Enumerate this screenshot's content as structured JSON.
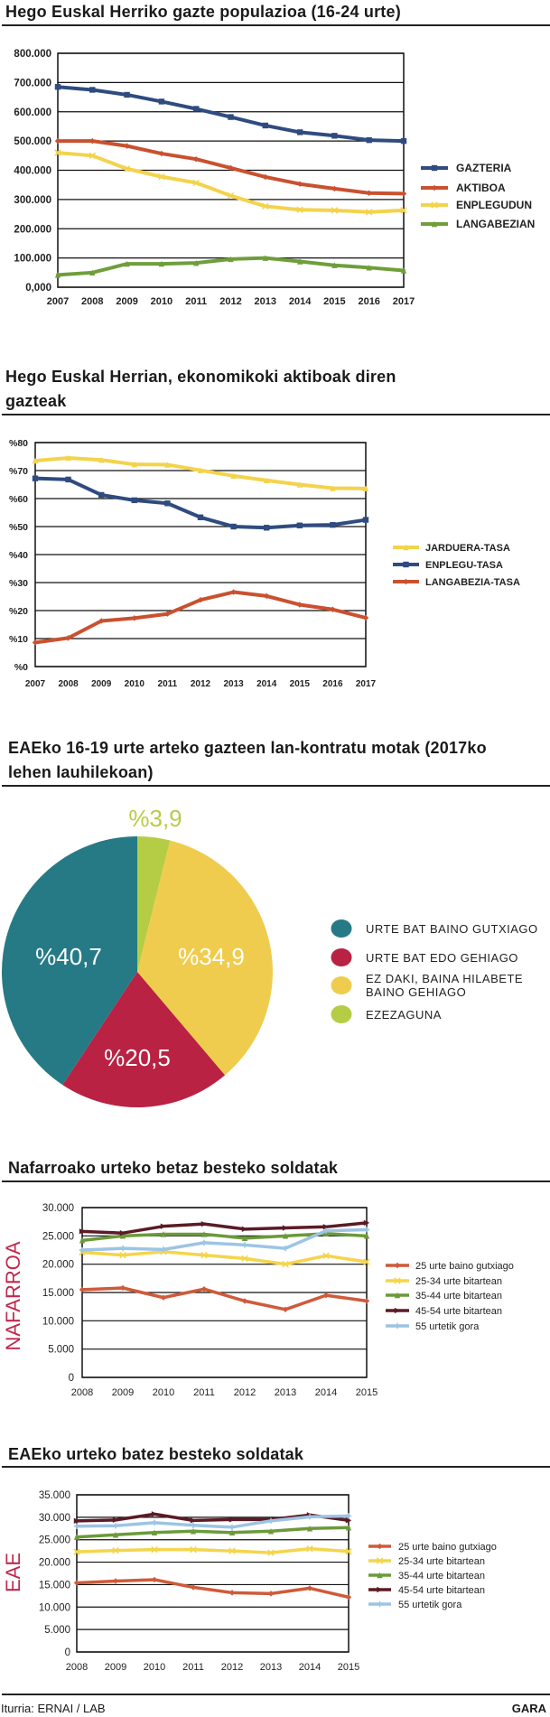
{
  "colors": {
    "blue": "#2f4b80",
    "red": "#c9512f",
    "yellow": "#f3d34c",
    "green": "#6f9e3b",
    "s_red": "#cf5a3a",
    "s_yellow": "#f4d54b",
    "s_green": "#6b9a3a",
    "s_dark": "#5b1b26",
    "s_lightblue": "#9cc4e4",
    "pie_teal": "#267a85",
    "pie_crimson": "#b92243",
    "pie_yellow": "#f0cc4e",
    "pie_lime": "#b5cd45",
    "side_label": "#c0284f"
  },
  "footer": {
    "source": "Iturria: ERNAI / LAB",
    "brand": "GARA"
  },
  "chart_data": [
    {
      "type": "line",
      "title": "Hego Euskal Herriko gazte populazioa (16-24 urte)",
      "x": [
        "2007",
        "2008",
        "2009",
        "2010",
        "2011",
        "2012",
        "2013",
        "2014",
        "2015",
        "2016",
        "2017"
      ],
      "ylim": [
        0,
        800000
      ],
      "yticks": [
        0,
        100000,
        200000,
        300000,
        400000,
        500000,
        600000,
        700000,
        800000
      ],
      "ytick_labels": [
        "0,000",
        "100.000",
        "200.000",
        "300.000",
        "400.000",
        "500.000",
        "600.000",
        "700.000",
        "800.000"
      ],
      "grid": true,
      "legend": "right",
      "series": [
        {
          "name": "GAZTERIA",
          "color": "#2f4b80",
          "marker": "square",
          "values": [
            685000,
            675000,
            658000,
            635000,
            610000,
            582000,
            553000,
            530000,
            518000,
            503000,
            500000
          ]
        },
        {
          "name": "AKTIBOA",
          "color": "#c9512f",
          "marker": "diamond",
          "values": [
            500000,
            500000,
            483000,
            457000,
            438000,
            408000,
            377000,
            353000,
            337000,
            322000,
            320000
          ]
        },
        {
          "name": "ENPLEGUDUN",
          "color": "#f3d34c",
          "marker": "cross",
          "values": [
            460000,
            450000,
            405000,
            378000,
            357000,
            313000,
            277000,
            265000,
            263000,
            257000,
            263000
          ]
        },
        {
          "name": "LANGABEZIAN",
          "color": "#6f9e3b",
          "marker": "triangle",
          "values": [
            42000,
            50000,
            80000,
            80000,
            83000,
            96000,
            100000,
            88000,
            75000,
            67000,
            57000
          ]
        }
      ]
    },
    {
      "type": "line",
      "title": "Hego Euskal Herrian, ekonomikoki aktiboak diren gazteak",
      "x": [
        "2007",
        "2008",
        "2009",
        "2010",
        "2011",
        "2012",
        "2013",
        "2014",
        "2015",
        "2016",
        "2017"
      ],
      "ylim": [
        0,
        80
      ],
      "yticks": [
        0,
        10,
        20,
        30,
        40,
        50,
        60,
        70,
        80
      ],
      "ytick_labels": [
        "%0",
        "%10",
        "%20",
        "%30",
        "%40",
        "%50",
        "%60",
        "%70",
        "%80"
      ],
      "grid": true,
      "legend": "right",
      "series": [
        {
          "name": "JARDUERA-TASA",
          "color": "#f3d34c",
          "marker": "triangle",
          "values": [
            73.5,
            74.5,
            73.8,
            72.2,
            72.1,
            70.1,
            68.1,
            66.5,
            65,
            63.7,
            63.6
          ]
        },
        {
          "name": "ENPLEGU-TASA",
          "color": "#2f4b80",
          "marker": "square",
          "values": [
            67.2,
            66.8,
            61.3,
            59.4,
            58.3,
            53.3,
            50,
            49.6,
            50.4,
            50.6,
            52.4
          ]
        },
        {
          "name": "LANGABEZIA-TASA",
          "color": "#c9512f",
          "marker": "diamond",
          "values": [
            8.6,
            10.2,
            16.3,
            17.3,
            18.8,
            23.8,
            26.6,
            25.2,
            22.1,
            20.4,
            17.4
          ]
        }
      ]
    },
    {
      "type": "pie",
      "title": "EAEko 16-19 urte arteko gazteen lan-kontratu motak (2017ko lehen lauhilekoan)",
      "slices": [
        {
          "name": "EZEZAGUNA",
          "value": 3.9,
          "label": "%3,9",
          "color": "#b5cd45"
        },
        {
          "name": "EZ DAKI, BAINA HILABETE BAINO GEHIAGO",
          "value": 34.9,
          "label": "%34,9",
          "color": "#f0cc4e"
        },
        {
          "name": "URTE BAT EDO GEHIAGO",
          "value": 20.5,
          "label": "%20,5",
          "color": "#b92243"
        },
        {
          "name": "URTE BAT BAINO GUTXIAGO",
          "value": 40.7,
          "label": "%40,7",
          "color": "#267a85"
        }
      ],
      "legend_order": [
        "URTE BAT BAINO GUTXIAGO",
        "URTE BAT EDO GEHIAGO",
        "EZ DAKI, BAINA HILABETE BAINO GEHIAGO",
        "EZEZAGUNA"
      ],
      "legend": "right"
    },
    {
      "type": "line",
      "title": "Nafarroako urteko betaz besteko soldatak",
      "side_label": "NAFARROA",
      "x": [
        "2008",
        "2009",
        "2010",
        "2011",
        "2012",
        "2013",
        "2014",
        "2015"
      ],
      "ylim": [
        0,
        30000
      ],
      "yticks": [
        0,
        5000,
        10000,
        15000,
        20000,
        25000,
        30000
      ],
      "ytick_labels": [
        "0",
        "5.000",
        "10.000",
        "15.000",
        "20.000",
        "25.000",
        "30.000"
      ],
      "grid": true,
      "legend": "right",
      "series": [
        {
          "name": "25 urte baino gutxiago",
          "color": "#cf5a3a",
          "marker": "diamond",
          "values": [
            15500,
            15800,
            14100,
            15600,
            13500,
            12000,
            14500,
            13500
          ]
        },
        {
          "name": "25-34 urte bitartean",
          "color": "#f4d54b",
          "marker": "cross",
          "values": [
            22100,
            21600,
            22200,
            21600,
            21000,
            20000,
            21500,
            20400
          ]
        },
        {
          "name": "35-44 urte bitartean",
          "color": "#6b9a3a",
          "marker": "triangle",
          "values": [
            24200,
            25000,
            25300,
            25300,
            24600,
            25000,
            25400,
            25000
          ]
        },
        {
          "name": "45-54 urte bitartean",
          "color": "#5b1b26",
          "marker": "arrow",
          "values": [
            25800,
            25500,
            26700,
            27100,
            26200,
            26400,
            26600,
            27300
          ]
        },
        {
          "name": "55 urtetik gora",
          "color": "#9cc4e4",
          "marker": "plus",
          "values": [
            22500,
            22800,
            22600,
            23800,
            23400,
            22800,
            25900,
            26100
          ]
        }
      ]
    },
    {
      "type": "line",
      "title": "EAEko urteko batez besteko soldatak",
      "side_label": "EAE",
      "x": [
        "2008",
        "2009",
        "2010",
        "2011",
        "2012",
        "2013",
        "2014",
        "2015"
      ],
      "ylim": [
        0,
        35000
      ],
      "yticks": [
        0,
        5000,
        10000,
        15000,
        20000,
        25000,
        30000,
        35000
      ],
      "ytick_labels": [
        "0",
        "5.000",
        "10.000",
        "15.000",
        "20.000",
        "25.000",
        "30.000",
        "35.000"
      ],
      "grid": true,
      "legend": "right",
      "series": [
        {
          "name": "25 urte baino gutxiago",
          "color": "#cf5a3a",
          "marker": "diamond",
          "values": [
            15400,
            15800,
            16100,
            14400,
            13200,
            13000,
            14200,
            12200
          ]
        },
        {
          "name": "25-34 urte bitartean",
          "color": "#f4d54b",
          "marker": "cross",
          "values": [
            22300,
            22600,
            22800,
            22800,
            22500,
            22100,
            23000,
            22400
          ]
        },
        {
          "name": "35-44 urte bitartean",
          "color": "#6b9a3a",
          "marker": "triangle",
          "values": [
            25600,
            26100,
            26600,
            26900,
            26600,
            26900,
            27500,
            27700
          ]
        },
        {
          "name": "45-54 urte bitartean",
          "color": "#5b1b26",
          "marker": "arrow",
          "values": [
            29200,
            29400,
            30700,
            29300,
            29500,
            29500,
            30500,
            29300
          ]
        },
        {
          "name": "55 urtetik gora",
          "color": "#9cc4e4",
          "marker": "plus",
          "values": [
            28000,
            28100,
            28800,
            28200,
            27800,
            29200,
            30100,
            30300
          ]
        }
      ]
    }
  ]
}
